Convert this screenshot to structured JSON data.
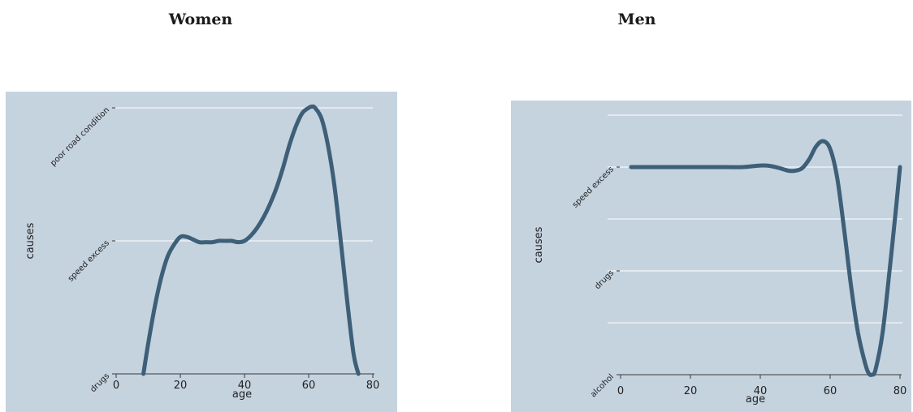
{
  "chart_data": [
    {
      "type": "line",
      "title": "Women",
      "xlabel": "age",
      "ylabel": "causes",
      "xlim": [
        0,
        80
      ],
      "xticks": [
        0,
        20,
        40,
        60,
        80
      ],
      "ylim": [
        0,
        2
      ],
      "yticks": [
        {
          "value": 0,
          "label": "drugs"
        },
        {
          "value": 1,
          "label": "speed excess"
        },
        {
          "value": 2,
          "label": "poor road condition"
        }
      ],
      "grid": true,
      "line_color": "#3e5f78",
      "series": [
        {
          "x": [
            8.5,
            10,
            12,
            14,
            16,
            18,
            20,
            22,
            24,
            26,
            28,
            30,
            32,
            34,
            36,
            38,
            40,
            42,
            44,
            46,
            48,
            50,
            52,
            54,
            56,
            58,
            60,
            61,
            62,
            64,
            66,
            68,
            70,
            72,
            74,
            75.5
          ],
          "y": [
            0,
            0.23,
            0.5,
            0.72,
            0.88,
            0.97,
            1.03,
            1.03,
            1.01,
            0.99,
            0.99,
            0.99,
            1.0,
            1.0,
            1.0,
            0.99,
            1.0,
            1.04,
            1.1,
            1.18,
            1.28,
            1.4,
            1.55,
            1.72,
            1.86,
            1.96,
            2.0,
            2.01,
            2.0,
            1.92,
            1.72,
            1.42,
            1.0,
            0.55,
            0.15,
            0
          ]
        }
      ]
    },
    {
      "type": "line",
      "title": "Men",
      "xlabel": "age",
      "ylabel": "causes",
      "xlim": [
        0,
        80
      ],
      "xticks": [
        0,
        20,
        40,
        60,
        80
      ],
      "ylim": [
        0,
        5
      ],
      "yticks": [
        {
          "value": 0,
          "label": "alcohol"
        },
        {
          "value": 2,
          "label": "drugs"
        },
        {
          "value": 4,
          "label": "speed excess"
        }
      ],
      "grid": true,
      "line_color": "#3e5f78",
      "series": [
        {
          "x": [
            3,
            10,
            20,
            30,
            35,
            40,
            43,
            46,
            48,
            50,
            52,
            54,
            56,
            58,
            60,
            62,
            64,
            66,
            68,
            70,
            71,
            72,
            73,
            75,
            77,
            79,
            80
          ],
          "y": [
            4.0,
            4.0,
            4.0,
            4.0,
            4.0,
            4.03,
            4.02,
            3.97,
            3.93,
            3.93,
            3.98,
            4.15,
            4.4,
            4.5,
            4.35,
            3.8,
            2.8,
            1.7,
            0.8,
            0.22,
            0.03,
            0.0,
            0.1,
            0.8,
            2.0,
            3.3,
            4.0
          ]
        }
      ]
    }
  ]
}
